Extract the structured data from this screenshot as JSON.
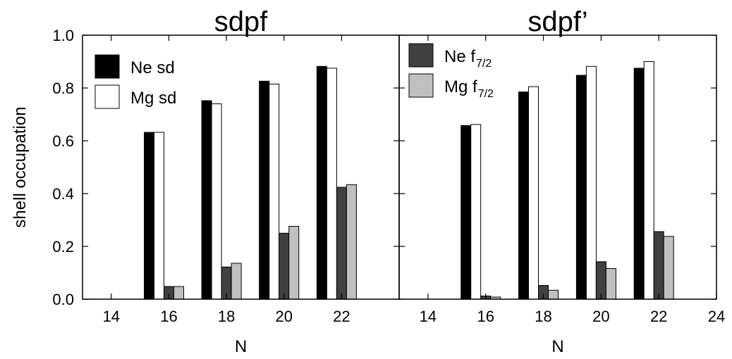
{
  "colors": {
    "ne_sd": "#000000",
    "mg_sd": "#ffffff",
    "ne_f72": "#404040",
    "mg_f72": "#c0c0c0"
  },
  "ylabel": "shell occupation",
  "chart_data": [
    {
      "type": "bar",
      "title": "sdpf",
      "xlabel": "N",
      "ylabel": "shell occupation",
      "ylim": [
        0,
        1.0
      ],
      "xlim": [
        13,
        24
      ],
      "xticks": [
        "14",
        "16",
        "18",
        "20",
        "22"
      ],
      "yticks": [
        "0.0",
        "0.2",
        "0.4",
        "0.6",
        "0.8",
        "1.0"
      ],
      "x": [
        16,
        18,
        20,
        22
      ],
      "legend_position": "top-left",
      "legend": [
        {
          "label": "Ne sd",
          "sub": ""
        },
        {
          "label": "Mg sd",
          "sub": ""
        }
      ],
      "series": [
        {
          "name": "Ne sd",
          "values": [
            0.632,
            0.752,
            0.826,
            0.882
          ]
        },
        {
          "name": "Mg sd",
          "values": [
            0.632,
            0.74,
            0.815,
            0.875
          ]
        },
        {
          "name": "Ne f7/2",
          "values": [
            0.048,
            0.122,
            0.25,
            0.424
          ]
        },
        {
          "name": "Mg f7/2",
          "values": [
            0.048,
            0.136,
            0.276,
            0.434
          ]
        }
      ]
    },
    {
      "type": "bar",
      "title": "sdpf’",
      "xlabel": "N",
      "ylabel": "",
      "ylim": [
        0,
        1.0
      ],
      "xlim": [
        13,
        24
      ],
      "xticks": [
        "14",
        "16",
        "18",
        "20",
        "22",
        "24"
      ],
      "yticks": [],
      "x": [
        16,
        18,
        20,
        22
      ],
      "legend_position": "top-left",
      "legend": [
        {
          "label": "Ne f",
          "sub": "7/2"
        },
        {
          "label": "Mg f",
          "sub": "7/2"
        }
      ],
      "series": [
        {
          "name": "Ne sd",
          "values": [
            0.658,
            0.785,
            0.848,
            0.875
          ]
        },
        {
          "name": "Mg sd",
          "values": [
            0.662,
            0.805,
            0.882,
            0.9
          ]
        },
        {
          "name": "Ne f7/2",
          "values": [
            0.012,
            0.052,
            0.142,
            0.256
          ]
        },
        {
          "name": "Mg f7/2",
          "values": [
            0.008,
            0.034,
            0.116,
            0.238
          ]
        }
      ]
    }
  ]
}
